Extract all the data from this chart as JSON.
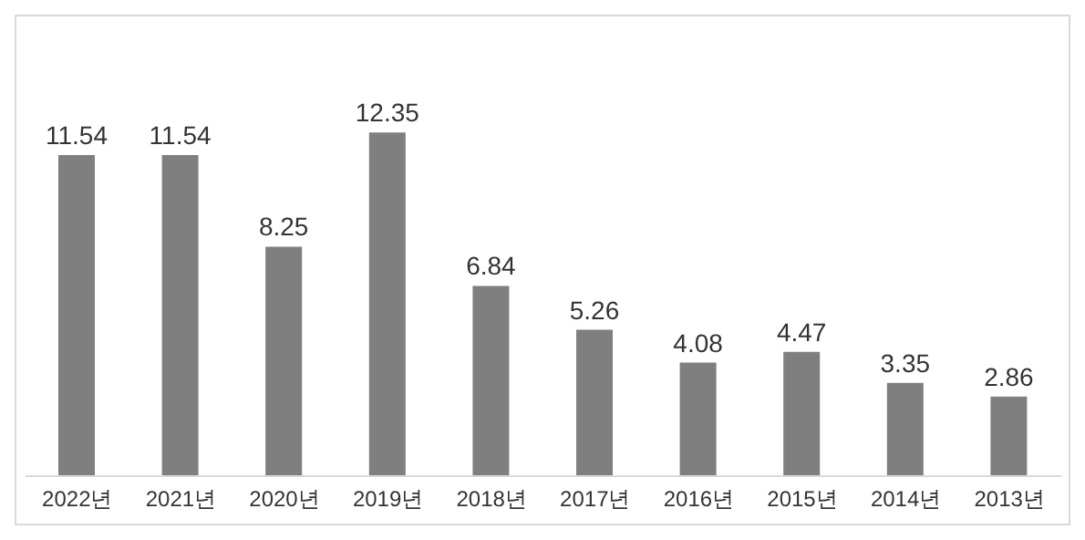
{
  "chart_data": {
    "type": "bar",
    "categories": [
      "2022년",
      "2021년",
      "2020년",
      "2019년",
      "2018년",
      "2017년",
      "2016년",
      "2015년",
      "2014년",
      "2013년"
    ],
    "values": [
      11.54,
      11.54,
      8.25,
      12.35,
      6.84,
      5.26,
      4.08,
      4.47,
      3.35,
      2.86
    ],
    "color": "#7f7f7f",
    "tick_labels": "x",
    "data_labels": true
  }
}
